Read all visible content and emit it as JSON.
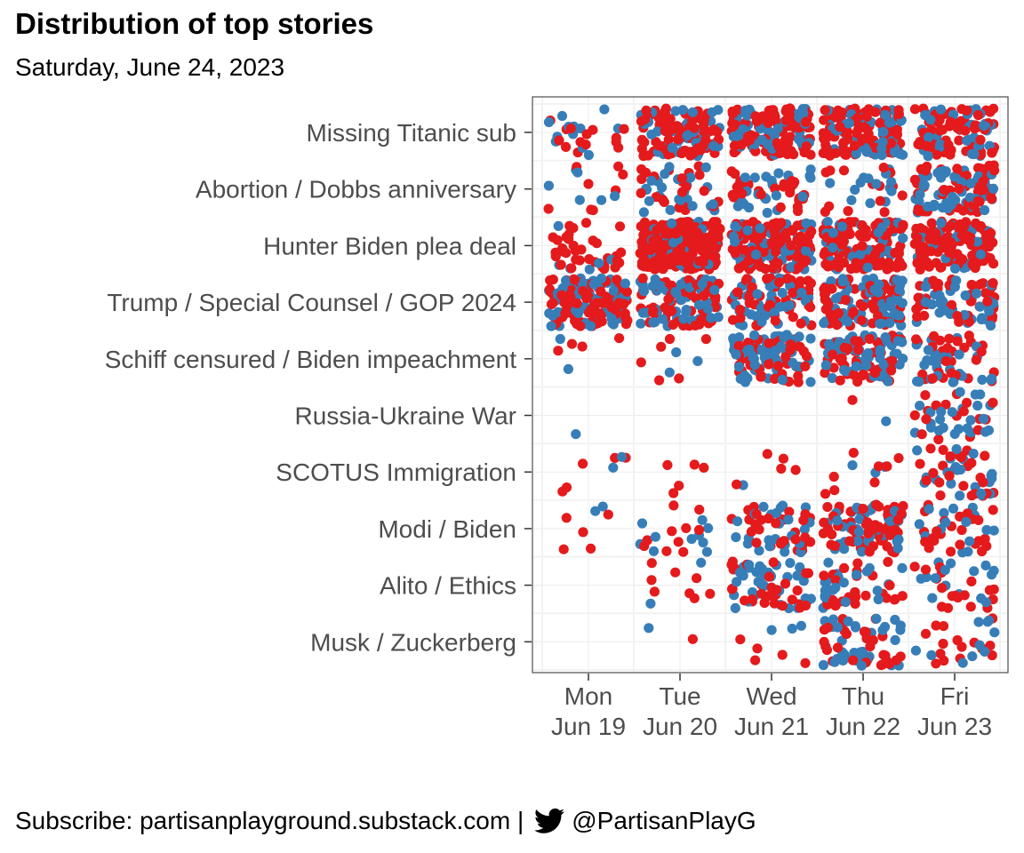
{
  "title": "Distribution of top stories",
  "subtitle": "Saturday, June 24, 2023",
  "footer": {
    "subscribe_text": "Subscribe: partisanplayground.substack.com |",
    "icon": "twitter-bird-icon",
    "handle": "@PartisanPlayG"
  },
  "colors": {
    "blue": "#377eb8",
    "red": "#e41a1c",
    "panel_border": "#4d4d4d",
    "grid": "#ebebeb",
    "axis_text": "#4d4d4d"
  },
  "chart_data": {
    "type": "scatter",
    "jitter": true,
    "x_categories": [
      {
        "day": "Mon",
        "date": "Jun 19"
      },
      {
        "day": "Tue",
        "date": "Jun 20"
      },
      {
        "day": "Wed",
        "date": "Jun 21"
      },
      {
        "day": "Thu",
        "date": "Jun 22"
      },
      {
        "day": "Fri",
        "date": "Jun 23"
      }
    ],
    "y_categories": [
      "Missing Titanic sub",
      "Abortion / Dobbs anniversary",
      "Hunter Biden plea deal",
      "Trump / Special Counsel / GOP 2024",
      "Schiff censured / Biden impeachment",
      "Russia-Ukraine War",
      "SCOTUS Immigration",
      "Modi / Biden",
      "Alito / Ethics",
      "Musk / Zuckerberg"
    ],
    "series_colors": [
      "#377eb8",
      "#e41a1c"
    ],
    "approx_point_counts": [
      {
        "story": "Missing Titanic sub",
        "blue": [
          12,
          40,
          45,
          45,
          40
        ],
        "red": [
          14,
          80,
          100,
          105,
          70
        ]
      },
      {
        "story": "Abortion / Dobbs anniversary",
        "blue": [
          6,
          28,
          25,
          14,
          55
        ],
        "red": [
          8,
          22,
          28,
          14,
          50
        ]
      },
      {
        "story": "Hunter Biden plea deal",
        "blue": [
          6,
          40,
          45,
          30,
          25
        ],
        "red": [
          35,
          200,
          120,
          110,
          110
        ]
      },
      {
        "story": "Trump / Special Counsel / GOP 2024",
        "blue": [
          70,
          55,
          40,
          60,
          40
        ],
        "red": [
          90,
          60,
          60,
          60,
          40
        ]
      },
      {
        "story": "Schiff censured / Biden impeachment",
        "blue": [
          2,
          3,
          60,
          60,
          30
        ],
        "red": [
          4,
          6,
          50,
          50,
          30
        ]
      },
      {
        "story": "Russia-Ukraine War",
        "blue": [
          1,
          0,
          0,
          1,
          25
        ],
        "red": [
          0,
          0,
          0,
          1,
          18
        ]
      },
      {
        "story": "SCOTUS Immigration",
        "blue": [
          2,
          0,
          1,
          3,
          22
        ],
        "red": [
          5,
          5,
          5,
          8,
          25
        ]
      },
      {
        "story": "Modi / Biden",
        "blue": [
          2,
          10,
          25,
          40,
          15
        ],
        "red": [
          5,
          10,
          30,
          60,
          25
        ]
      },
      {
        "story": "Alito / Ethics",
        "blue": [
          0,
          2,
          35,
          25,
          15
        ],
        "red": [
          0,
          8,
          30,
          25,
          18
        ]
      },
      {
        "story": "Musk / Zuckerberg",
        "blue": [
          0,
          1,
          3,
          35,
          10
        ],
        "red": [
          0,
          1,
          5,
          30,
          15
        ]
      }
    ],
    "grid": true,
    "legend": "none"
  }
}
